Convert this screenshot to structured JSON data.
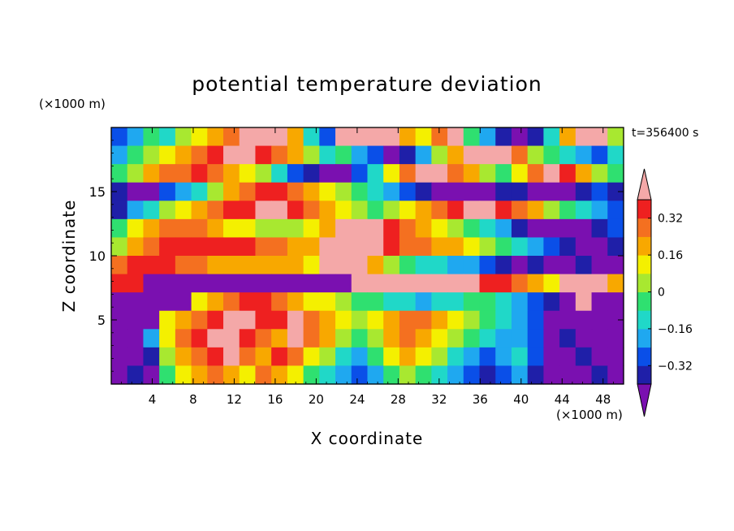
{
  "chart_data": {
    "type": "heatmap",
    "title": "potential temperature deviation",
    "xlabel": "X coordinate",
    "ylabel": "Z coordinate",
    "x_unit": "(×1000 m)",
    "y_unit": "(×1000 m)",
    "time_label": "t=356400 s",
    "xlim": [
      0,
      50
    ],
    "ylim": [
      0,
      20
    ],
    "x_ticks": [
      4,
      8,
      12,
      16,
      20,
      24,
      28,
      32,
      36,
      40,
      44,
      48
    ],
    "y_ticks": [
      5,
      10,
      15
    ],
    "colorbar": {
      "levels": [
        -0.4,
        -0.32,
        -0.24,
        -0.16,
        -0.08,
        0,
        0.08,
        0.16,
        0.24,
        0.32,
        0.4
      ],
      "tick_labels": [
        "0.32",
        "0.16",
        "0",
        "−0.16",
        "−0.32"
      ],
      "tick_values": [
        0.32,
        0.16,
        0,
        -0.16,
        -0.32
      ],
      "colors": [
        "#7a10b0",
        "#1f1fa8",
        "#0a4fe8",
        "#1fa8f0",
        "#20d8c8",
        "#2fe070",
        "#a8e830",
        "#f4f000",
        "#f8a800",
        "#f47020",
        "#ee2020",
        "#f4a8a8"
      ],
      "extend": "both"
    },
    "rows": [
      [
        2,
        3,
        5,
        4,
        6,
        7,
        8,
        9,
        11,
        11,
        11,
        8,
        4,
        2,
        11,
        11,
        11,
        11,
        8,
        7,
        9,
        11,
        5,
        3,
        1,
        0,
        1,
        4,
        8,
        11,
        11,
        6
      ],
      [
        3,
        5,
        6,
        7,
        8,
        9,
        10,
        11,
        11,
        10,
        9,
        8,
        6,
        4,
        5,
        3,
        2,
        0,
        1,
        3,
        6,
        8,
        11,
        11,
        11,
        9,
        6,
        5,
        4,
        3,
        2,
        4
      ],
      [
        5,
        6,
        8,
        9,
        9,
        10,
        9,
        8,
        7,
        6,
        4,
        2,
        1,
        0,
        0,
        2,
        4,
        7,
        9,
        11,
        11,
        9,
        8,
        6,
        5,
        7,
        9,
        11,
        10,
        8,
        6,
        5
      ],
      [
        1,
        0,
        0,
        2,
        3,
        4,
        6,
        8,
        9,
        10,
        10,
        9,
        8,
        7,
        6,
        5,
        4,
        3,
        2,
        1,
        0,
        0,
        0,
        0,
        1,
        1,
        0,
        0,
        0,
        1,
        2,
        1
      ],
      [
        1,
        3,
        4,
        6,
        7,
        8,
        9,
        10,
        10,
        11,
        11,
        10,
        9,
        8,
        7,
        6,
        5,
        6,
        7,
        8,
        9,
        10,
        11,
        11,
        10,
        9,
        8,
        6,
        5,
        4,
        3,
        2
      ],
      [
        5,
        7,
        8,
        9,
        9,
        9,
        8,
        7,
        7,
        6,
        6,
        6,
        7,
        8,
        11,
        11,
        11,
        10,
        9,
        8,
        7,
        6,
        5,
        4,
        3,
        1,
        0,
        0,
        0,
        0,
        1,
        2
      ],
      [
        6,
        8,
        9,
        10,
        10,
        10,
        10,
        10,
        10,
        9,
        9,
        8,
        8,
        11,
        11,
        11,
        11,
        10,
        9,
        9,
        8,
        8,
        7,
        6,
        5,
        4,
        3,
        2,
        1,
        0,
        0,
        1
      ],
      [
        9,
        10,
        10,
        10,
        9,
        9,
        8,
        8,
        8,
        8,
        8,
        8,
        7,
        11,
        11,
        11,
        8,
        6,
        5,
        4,
        4,
        3,
        3,
        2,
        1,
        0,
        1,
        0,
        0,
        1,
        0,
        0
      ],
      [
        10,
        10,
        0,
        0,
        0,
        0,
        0,
        0,
        0,
        0,
        0,
        0,
        0,
        0,
        0,
        11,
        11,
        11,
        11,
        11,
        11,
        11,
        11,
        10,
        10,
        9,
        8,
        7,
        11,
        11,
        11,
        8
      ],
      [
        0,
        0,
        0,
        0,
        0,
        7,
        8,
        9,
        10,
        10,
        9,
        8,
        7,
        7,
        6,
        5,
        5,
        4,
        4,
        3,
        4,
        4,
        5,
        5,
        4,
        3,
        2,
        1,
        0,
        11,
        0,
        0
      ],
      [
        0,
        0,
        0,
        7,
        8,
        9,
        10,
        11,
        11,
        10,
        10,
        11,
        9,
        8,
        7,
        6,
        7,
        8,
        9,
        9,
        8,
        7,
        6,
        5,
        4,
        3,
        2,
        0,
        0,
        0,
        0,
        0
      ],
      [
        0,
        0,
        3,
        7,
        9,
        10,
        11,
        11,
        10,
        9,
        8,
        11,
        9,
        8,
        6,
        5,
        6,
        8,
        9,
        8,
        7,
        6,
        5,
        4,
        3,
        3,
        2,
        0,
        1,
        0,
        0,
        0
      ],
      [
        0,
        0,
        1,
        6,
        8,
        9,
        10,
        11,
        9,
        8,
        10,
        9,
        7,
        6,
        4,
        3,
        5,
        7,
        8,
        7,
        6,
        4,
        3,
        2,
        3,
        4,
        2,
        0,
        0,
        1,
        0,
        0
      ],
      [
        0,
        1,
        0,
        5,
        7,
        8,
        9,
        8,
        7,
        9,
        8,
        7,
        5,
        4,
        3,
        2,
        3,
        5,
        6,
        5,
        4,
        3,
        2,
        1,
        2,
        3,
        1,
        0,
        0,
        0,
        1,
        0
      ]
    ]
  }
}
